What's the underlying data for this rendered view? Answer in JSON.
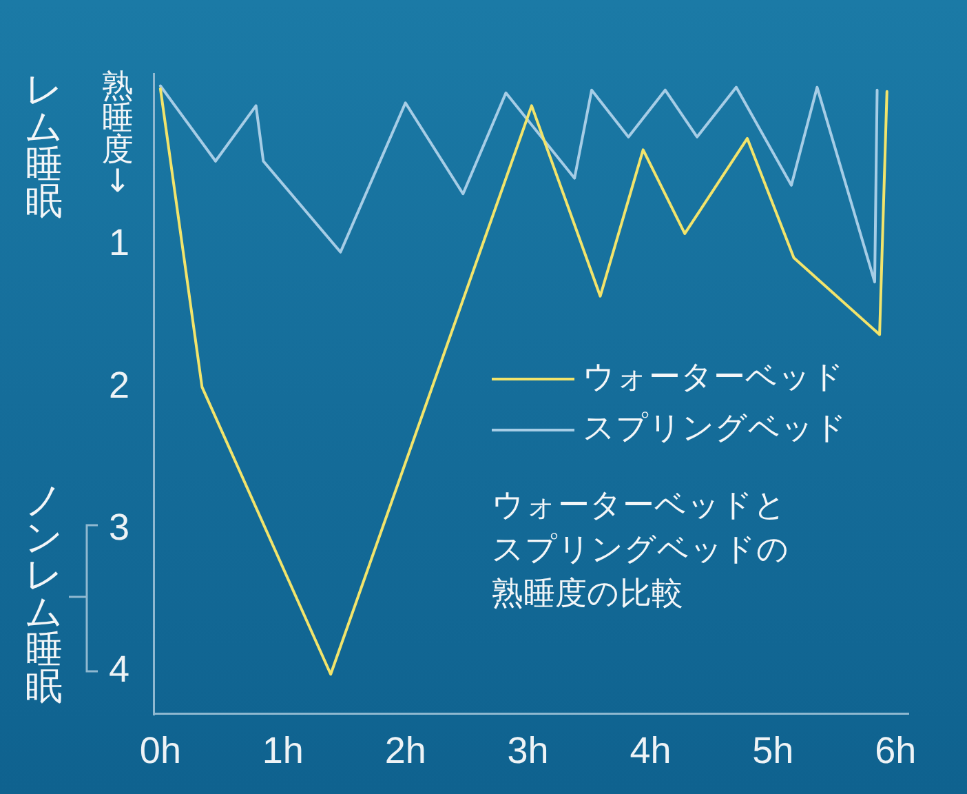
{
  "chart_data": {
    "type": "line",
    "title": "ウォーターベッドとスプリングベッドの熟睡度の比較",
    "ylabel": "熟睡度↓",
    "annotations": [
      "レム睡眠",
      "ノンレム睡眠"
    ],
    "series": [
      {
        "name": "ウォーターベッド",
        "color": "#f2e46b",
        "x": [
          0,
          0.34,
          1.39,
          3.03,
          3.59,
          3.94,
          4.28,
          4.79,
          5.17,
          5.87,
          5.93
        ],
        "values": [
          -0.1,
          2.0,
          4.02,
          0.02,
          1.36,
          0.33,
          0.92,
          0.25,
          1.09,
          1.63,
          -0.08
        ]
      },
      {
        "name": "スプリングベッド",
        "color": "#a6cde6",
        "x": [
          0,
          0.45,
          0.78,
          0.84,
          1.47,
          2.0,
          2.47,
          2.82,
          3.38,
          3.52,
          3.82,
          4.12,
          4.38,
          4.7,
          5.15,
          5.36,
          5.83,
          5.85
        ],
        "values": [
          -0.12,
          0.41,
          0.02,
          0.41,
          1.05,
          0.0,
          0.64,
          -0.07,
          0.53,
          -0.09,
          0.24,
          -0.09,
          0.24,
          -0.11,
          0.58,
          -0.11,
          1.26,
          -0.09
        ]
      }
    ],
    "xlim": [
      -0.05,
      6.1
    ],
    "xticks": [
      {
        "value": 0,
        "label": "0h"
      },
      {
        "value": 1,
        "label": "1h"
      },
      {
        "value": 2,
        "label": "2h"
      },
      {
        "value": 3,
        "label": "3h"
      },
      {
        "value": 4,
        "label": "4h"
      },
      {
        "value": 5,
        "label": "5h"
      },
      {
        "value": 6,
        "label": "6h"
      }
    ],
    "ylim": [
      4.3,
      -0.2
    ],
    "yticks": [
      1,
      2,
      3,
      4
    ],
    "legend": "right",
    "marker": "none",
    "line_style": "solid"
  }
}
